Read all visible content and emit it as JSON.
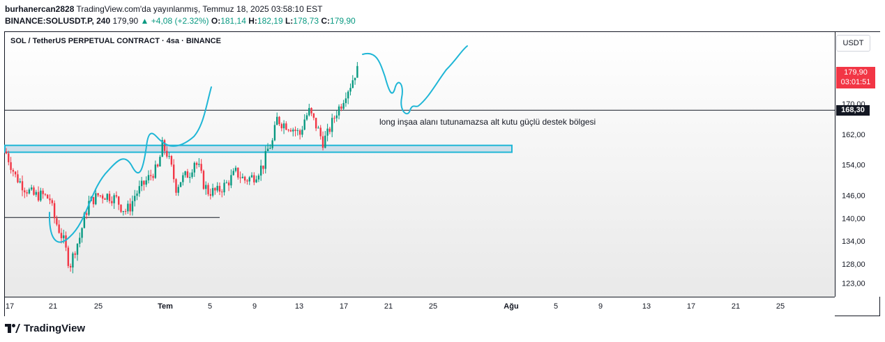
{
  "header": {
    "author": "burhanercan2828",
    "published": "TradingView.com'da yayınlanmış, Temmuz 18, 2025 03:58:10 EST",
    "symbol_line": "BINANCE:SOLUSDT.P, 240",
    "last": "179,90",
    "change_arrow": "▲",
    "change": "+4,08 (+2.32%)",
    "o_label": "O:",
    "o": "181,14",
    "h_label": "H:",
    "h": "182,19",
    "l_label": "L:",
    "l": "178,73",
    "c_label": "C:",
    "c": "179,90"
  },
  "legend": {
    "title": "SOL / TetherUS PERPETUAL CONTRACT · 4sa · BINANCE"
  },
  "price_axis": {
    "currency": "USDT",
    "ticks": [
      "170,00",
      "162,00",
      "154,00",
      "146,00",
      "140,00",
      "134,00",
      "128,00",
      "123,00"
    ],
    "current_price": "179,90",
    "countdown": "03:01:51",
    "line_price": "168,30"
  },
  "time_axis": {
    "ticks": [
      "17",
      "21",
      "25",
      "Tem",
      "5",
      "9",
      "13",
      "17",
      "21",
      "25",
      "Ağu",
      "5",
      "9",
      "13",
      "17",
      "21",
      "25"
    ]
  },
  "annotation": {
    "text": "long inşaa alanı tutunamazsa alt kutu güçlü destek bölgesi"
  },
  "footer": {
    "brand": "TradingView"
  },
  "colors": {
    "up": "#089981",
    "down": "#f23645",
    "drawing": "#1fb6d6",
    "box_fill": "#c7dbe8",
    "price_tag": "#f23645"
  },
  "chart_data": {
    "type": "candlestick",
    "title": "SOL / TetherUS PERPETUAL CONTRACT · 4sa · BINANCE",
    "symbol": "BINANCE:SOLUSDT.P",
    "timeframe": "240",
    "y_ticks": [
      123,
      128,
      134,
      140,
      146,
      154,
      162,
      170
    ],
    "y_range": [
      120,
      185
    ],
    "x_ticks": [
      "17",
      "21",
      "25",
      "Tem",
      "5",
      "9",
      "13",
      "17",
      "21",
      "25",
      "Ağu",
      "5",
      "9",
      "13",
      "17",
      "21",
      "25"
    ],
    "bars_count": 154,
    "close_path": [
      [
        0,
        157
      ],
      [
        4,
        151
      ],
      [
        8,
        148
      ],
      [
        12,
        146
      ],
      [
        16,
        146
      ],
      [
        19,
        145
      ],
      [
        21,
        140
      ],
      [
        23,
        137
      ],
      [
        25,
        134
      ],
      [
        27,
        129
      ],
      [
        28,
        128
      ],
      [
        30,
        132
      ],
      [
        32,
        135
      ],
      [
        34,
        140
      ],
      [
        36,
        144
      ],
      [
        40,
        146
      ],
      [
        44,
        146
      ],
      [
        48,
        145
      ],
      [
        50,
        143
      ],
      [
        52,
        142
      ],
      [
        54,
        143
      ],
      [
        56,
        146
      ],
      [
        60,
        149
      ],
      [
        64,
        152
      ],
      [
        66,
        153
      ],
      [
        68,
        159
      ],
      [
        70,
        157
      ],
      [
        72,
        153
      ],
      [
        74,
        148
      ],
      [
        76,
        150
      ],
      [
        80,
        152
      ],
      [
        82,
        155
      ],
      [
        84,
        153
      ],
      [
        86,
        149
      ],
      [
        88,
        147
      ],
      [
        92,
        147
      ],
      [
        96,
        149
      ],
      [
        100,
        152
      ],
      [
        104,
        150
      ],
      [
        108,
        151
      ],
      [
        112,
        154
      ],
      [
        114,
        158
      ],
      [
        116,
        160
      ],
      [
        118,
        166
      ],
      [
        120,
        165
      ],
      [
        124,
        164
      ],
      [
        128,
        162
      ],
      [
        130,
        166
      ],
      [
        132,
        168
      ],
      [
        136,
        163
      ],
      [
        138,
        160
      ],
      [
        140,
        162
      ],
      [
        142,
        165
      ],
      [
        144,
        168
      ],
      [
        146,
        170
      ],
      [
        148,
        173
      ],
      [
        150,
        175
      ],
      [
        152,
        178
      ],
      [
        153,
        180
      ]
    ],
    "current_price": 179.9,
    "horizontal_levels": [
      168.3,
      140.2
    ],
    "support_zone": [
      157.3,
      159.1
    ],
    "annotation": "long inşaa alanı tutunamazsa alt kutu güçlü destek bölgesi"
  }
}
